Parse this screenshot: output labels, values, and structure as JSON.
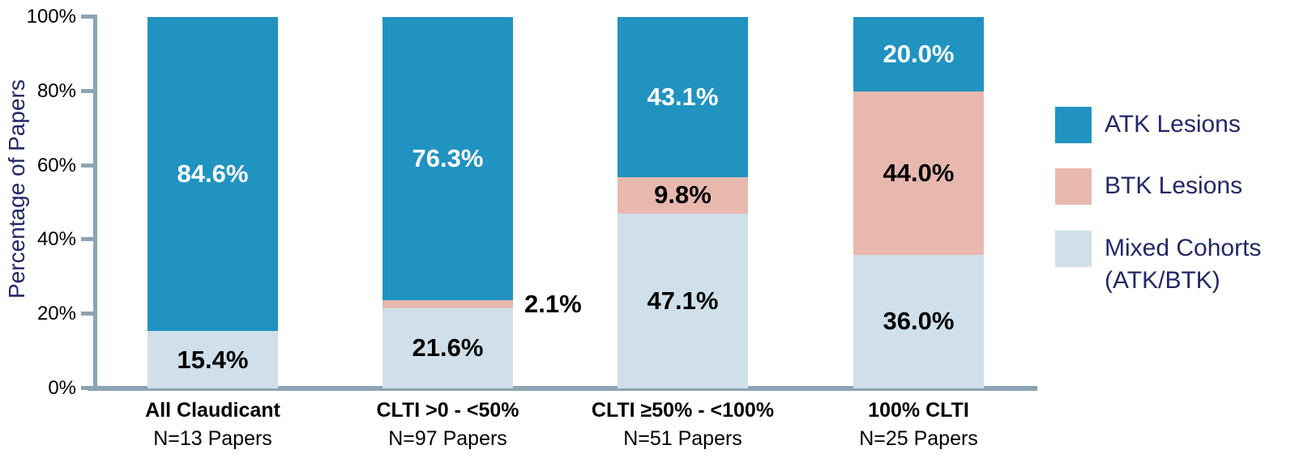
{
  "chart_data": {
    "type": "bar",
    "stacked": true,
    "title": "",
    "ylabel": "Percentage of Papers",
    "ylim": [
      0,
      100
    ],
    "grid": false,
    "legend_position": "right",
    "yticks": [
      {
        "label": "0%",
        "value": 0
      },
      {
        "label": "20%",
        "value": 20
      },
      {
        "label": "40%",
        "value": 40
      },
      {
        "label": "60%",
        "value": 60
      },
      {
        "label": "80%",
        "value": 80
      },
      {
        "label": "100%",
        "value": 100
      }
    ],
    "categories": [
      {
        "line1": "All Claudicant",
        "line2": "N=13 Papers"
      },
      {
        "line1": "CLTI >0 - <50%",
        "line2": "N=97 Papers"
      },
      {
        "line1": "CLTI ≥50% - <100%",
        "line2": "N=51 Papers"
      },
      {
        "line1": "100% CLTI",
        "line2": "N=25 Papers"
      }
    ],
    "series": [
      {
        "name": "ATK Lesions",
        "slug": "atk",
        "color": "#2193c1",
        "label_color": "#ffffff",
        "values": [
          84.6,
          76.3,
          43.1,
          20.0
        ],
        "labels": [
          "84.6%",
          "76.3%",
          "43.1%",
          "20.0%"
        ]
      },
      {
        "name": "BTK Lesions",
        "slug": "btk",
        "color": "#e8b8af",
        "label_color": "#000000",
        "values": [
          0,
          2.1,
          9.8,
          44.0
        ],
        "labels": [
          null,
          "2.1%",
          "9.8%",
          "44.0%"
        ],
        "outside_label_bars": [
          1
        ]
      },
      {
        "name": "Mixed Cohorts (ATK/BTK)",
        "slug": "mixed",
        "color": "#cfe0eb",
        "label_color": "#000000",
        "values": [
          15.4,
          21.6,
          47.1,
          36.0
        ],
        "labels": [
          "15.4%",
          "21.6%",
          "47.1%",
          "36.0%"
        ]
      }
    ],
    "stack_order_bottom_to_top": [
      2,
      1,
      0
    ],
    "legend_items": [
      {
        "series": 0,
        "lines": [
          "ATK Lesions"
        ]
      },
      {
        "series": 1,
        "lines": [
          "BTK Lesions"
        ]
      },
      {
        "series": 2,
        "lines": [
          "Mixed Cohorts",
          "(ATK/BTK)"
        ]
      }
    ],
    "axis_color": "#8ca4b4",
    "tick_label_color": "#000000",
    "ylabel_color": "#232769",
    "legend_text_color": "#232769"
  }
}
